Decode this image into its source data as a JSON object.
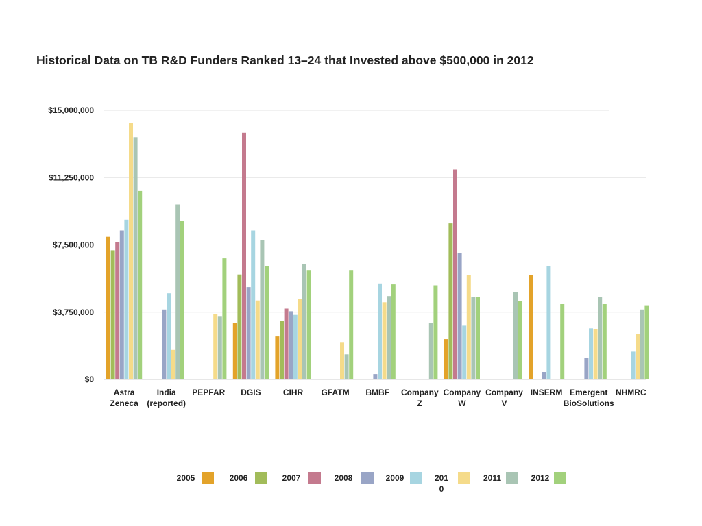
{
  "chart_data": {
    "type": "bar",
    "title": "Historical Data on TB R&D Funders Ranked 13–24 that Invested above $500,000 in 2012",
    "xlabel": "",
    "ylabel": "",
    "ylim": [
      0,
      15000000
    ],
    "yticks": [
      0,
      3750000,
      7500000,
      11250000,
      15000000
    ],
    "ytick_labels": [
      "$0",
      "$3,750,000",
      "$7,500,000",
      "$11,250,000",
      "$15,000,000"
    ],
    "categories": [
      [
        "Astra",
        "Zeneca"
      ],
      [
        "India",
        "(reported)"
      ],
      [
        "PEPFAR"
      ],
      [
        "DGIS"
      ],
      [
        "CIHR"
      ],
      [
        "GFATM"
      ],
      [
        "BMBF"
      ],
      [
        "Company",
        "Z"
      ],
      [
        "Company",
        "W"
      ],
      [
        "Company",
        "V"
      ],
      [
        "INSERM"
      ],
      [
        "Emergent",
        "BioSolutions"
      ],
      [
        "NHMRC"
      ]
    ],
    "series": [
      {
        "name": "2005",
        "color": "#E3A32A",
        "values": [
          7950000,
          null,
          null,
          3150000,
          2400000,
          null,
          null,
          null,
          2250000,
          null,
          5800000,
          null,
          null
        ]
      },
      {
        "name": "2006",
        "color": "#A2BC5A",
        "values": [
          7200000,
          null,
          null,
          5850000,
          3250000,
          null,
          null,
          null,
          8700000,
          null,
          null,
          null,
          null
        ]
      },
      {
        "name": "2007",
        "color": "#C47A8E",
        "values": [
          7650000,
          null,
          null,
          13750000,
          3950000,
          null,
          null,
          null,
          11700000,
          null,
          null,
          null,
          null
        ]
      },
      {
        "name": "2008",
        "color": "#99A5C6",
        "values": [
          8300000,
          3900000,
          null,
          5150000,
          3800000,
          null,
          300000,
          null,
          7050000,
          null,
          420000,
          1200000,
          null
        ]
      },
      {
        "name": "2009",
        "color": "#A7D5E1",
        "values": [
          8900000,
          4800000,
          null,
          8300000,
          3600000,
          null,
          5350000,
          null,
          3000000,
          null,
          6300000,
          2850000,
          1550000
        ]
      },
      {
        "name": "2010",
        "color": "#F5DB8A",
        "values": [
          14300000,
          1650000,
          3650000,
          4400000,
          4500000,
          2050000,
          4300000,
          null,
          5800000,
          null,
          null,
          2800000,
          2550000
        ]
      },
      {
        "name": "2011",
        "color": "#A9C5B4",
        "values": [
          13500000,
          9750000,
          3500000,
          7750000,
          6450000,
          1400000,
          4650000,
          3150000,
          4600000,
          4850000,
          null,
          4600000,
          3900000
        ]
      },
      {
        "name": "2012",
        "color": "#A2D17C",
        "values": [
          10500000,
          8850000,
          6750000,
          6300000,
          6100000,
          6100000,
          5300000,
          5250000,
          4600000,
          4350000,
          4200000,
          4200000,
          4100000
        ]
      }
    ],
    "legend_position": "bottom",
    "legend_entries": [
      {
        "label": "2005",
        "color": "#E3A32A"
      },
      {
        "label": "2006",
        "color": "#A2BC5A"
      },
      {
        "label": "2007",
        "color": "#C47A8E"
      },
      {
        "label": "2008",
        "color": "#99A5C6"
      },
      {
        "label": "2009",
        "color": "#A7D5E1"
      },
      {
        "label": [
          "201",
          "0"
        ],
        "color": "#F5DB8A"
      },
      {
        "label": "2011",
        "color": "#A9C5B4"
      },
      {
        "label": "2012",
        "color": "#A2D17C"
      }
    ],
    "grid": true
  }
}
